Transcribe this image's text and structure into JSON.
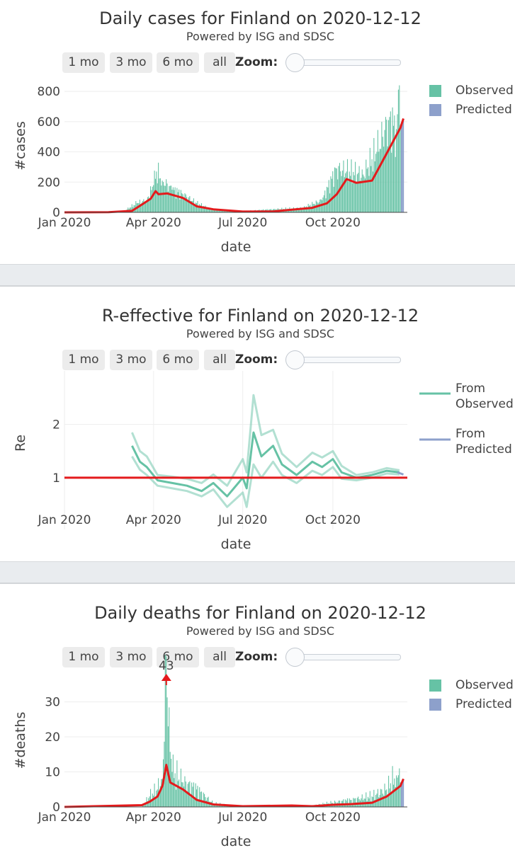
{
  "controls": {
    "buttons": [
      "1 mo",
      "3 mo",
      "6 mo",
      "all"
    ],
    "zoom_label": "Zoom:"
  },
  "colors": {
    "observed": "#66c2a5",
    "predicted": "#8da0cb",
    "trend": "#e41a1c"
  },
  "panels": [
    {
      "title": "Daily cases for Finland on 2020-12-12",
      "subtitle": "Powered by ISG and SDSC"
    },
    {
      "title": "R-effective for Finland on 2020-12-12",
      "subtitle": "Powered by ISG and SDSC"
    },
    {
      "title": "Daily deaths for Finland on 2020-12-12",
      "subtitle": "Powered by ISG and SDSC"
    }
  ],
  "chart_data": [
    {
      "type": "bar",
      "title": "Daily cases for Finland on 2020-12-12",
      "xlabel": "date",
      "ylabel": "#cases",
      "ylim": [
        0,
        880
      ],
      "y_ticks": [
        0,
        200,
        400,
        600,
        800
      ],
      "x_ticks": [
        "Jan 2020",
        "Apr 2020",
        "Jul 2020",
        "Oct 2020"
      ],
      "legend": {
        "position": "top-right",
        "entries": [
          "Observed",
          "Predicted"
        ]
      },
      "observed_daily_points": [
        [
          "2020-03-01",
          5
        ],
        [
          "2020-03-15",
          60
        ],
        [
          "2020-03-25",
          80
        ],
        [
          "2020-04-01",
          180
        ],
        [
          "2020-04-04",
          270
        ],
        [
          "2020-04-10",
          210
        ],
        [
          "2020-04-20",
          150
        ],
        [
          "2020-05-01",
          120
        ],
        [
          "2020-05-15",
          60
        ],
        [
          "2020-06-01",
          15
        ],
        [
          "2020-07-01",
          8
        ],
        [
          "2020-08-01",
          20
        ],
        [
          "2020-09-01",
          30
        ],
        [
          "2020-09-20",
          80
        ],
        [
          "2020-10-05",
          290
        ],
        [
          "2020-10-15",
          270
        ],
        [
          "2020-11-01",
          250
        ],
        [
          "2020-11-15",
          400
        ],
        [
          "2020-11-27",
          610
        ],
        [
          "2020-12-05",
          550
        ],
        [
          "2020-12-08",
          840
        ],
        [
          "2020-12-09",
          580
        ]
      ],
      "predicted": [
        [
          "2020-12-09",
          560
        ],
        [
          "2020-12-12",
          620
        ]
      ],
      "trend": [
        [
          "2020-01-01",
          0
        ],
        [
          "2020-02-15",
          1
        ],
        [
          "2020-03-10",
          10
        ],
        [
          "2020-03-22",
          60
        ],
        [
          "2020-03-29",
          90
        ],
        [
          "2020-04-03",
          140
        ],
        [
          "2020-04-06",
          120
        ],
        [
          "2020-04-15",
          125
        ],
        [
          "2020-05-01",
          95
        ],
        [
          "2020-05-15",
          40
        ],
        [
          "2020-06-01",
          20
        ],
        [
          "2020-07-01",
          5
        ],
        [
          "2020-08-01",
          6
        ],
        [
          "2020-08-20",
          18
        ],
        [
          "2020-09-10",
          30
        ],
        [
          "2020-09-25",
          60
        ],
        [
          "2020-10-05",
          120
        ],
        [
          "2020-10-15",
          220
        ],
        [
          "2020-10-25",
          195
        ],
        [
          "2020-11-10",
          210
        ],
        [
          "2020-11-20",
          330
        ],
        [
          "2020-12-09",
          560
        ],
        [
          "2020-12-12",
          620
        ]
      ]
    },
    {
      "type": "line",
      "title": "R-effective for Finland on 2020-12-12",
      "xlabel": "date",
      "ylabel": "Re",
      "ylim": [
        0.4,
        2.9
      ],
      "y_ticks": [
        1,
        2
      ],
      "x_ticks": [
        "Jan 2020",
        "Apr 2020",
        "Jul 2020",
        "Oct 2020"
      ],
      "legend": {
        "position": "top-right",
        "entries": [
          "From Observed",
          "From Predicted"
        ]
      },
      "reference_line": 1,
      "observed": [
        [
          "2020-03-10",
          1.6
        ],
        [
          "2020-03-18",
          1.3
        ],
        [
          "2020-03-25",
          1.2
        ],
        [
          "2020-04-05",
          0.95
        ],
        [
          "2020-04-20",
          0.9
        ],
        [
          "2020-05-05",
          0.85
        ],
        [
          "2020-05-20",
          0.75
        ],
        [
          "2020-06-01",
          0.9
        ],
        [
          "2020-06-15",
          0.65
        ],
        [
          "2020-07-01",
          1.0
        ],
        [
          "2020-07-05",
          0.8
        ],
        [
          "2020-07-12",
          1.85
        ],
        [
          "2020-07-20",
          1.4
        ],
        [
          "2020-08-01",
          1.6
        ],
        [
          "2020-08-10",
          1.25
        ],
        [
          "2020-08-25",
          1.05
        ],
        [
          "2020-09-10",
          1.3
        ],
        [
          "2020-09-20",
          1.2
        ],
        [
          "2020-10-01",
          1.35
        ],
        [
          "2020-10-10",
          1.1
        ],
        [
          "2020-10-25",
          1.0
        ],
        [
          "2020-11-10",
          1.05
        ],
        [
          "2020-11-25",
          1.13
        ],
        [
          "2020-12-08",
          1.1
        ]
      ],
      "observed_upper": [
        [
          "2020-03-10",
          1.85
        ],
        [
          "2020-03-18",
          1.5
        ],
        [
          "2020-03-25",
          1.4
        ],
        [
          "2020-04-05",
          1.05
        ],
        [
          "2020-04-20",
          1.02
        ],
        [
          "2020-05-05",
          0.98
        ],
        [
          "2020-05-20",
          0.9
        ],
        [
          "2020-06-01",
          1.06
        ],
        [
          "2020-06-15",
          0.85
        ],
        [
          "2020-07-01",
          1.35
        ],
        [
          "2020-07-05",
          1.1
        ],
        [
          "2020-07-12",
          2.55
        ],
        [
          "2020-07-20",
          1.8
        ],
        [
          "2020-08-01",
          1.9
        ],
        [
          "2020-08-10",
          1.45
        ],
        [
          "2020-08-25",
          1.2
        ],
        [
          "2020-09-10",
          1.47
        ],
        [
          "2020-09-20",
          1.38
        ],
        [
          "2020-10-01",
          1.5
        ],
        [
          "2020-10-10",
          1.22
        ],
        [
          "2020-10-25",
          1.05
        ],
        [
          "2020-11-10",
          1.1
        ],
        [
          "2020-11-25",
          1.18
        ],
        [
          "2020-12-08",
          1.14
        ]
      ],
      "observed_lower": [
        [
          "2020-03-10",
          1.4
        ],
        [
          "2020-03-18",
          1.15
        ],
        [
          "2020-03-25",
          1.05
        ],
        [
          "2020-04-05",
          0.85
        ],
        [
          "2020-04-20",
          0.8
        ],
        [
          "2020-05-05",
          0.75
        ],
        [
          "2020-05-20",
          0.65
        ],
        [
          "2020-06-01",
          0.78
        ],
        [
          "2020-06-15",
          0.45
        ],
        [
          "2020-07-01",
          0.72
        ],
        [
          "2020-07-05",
          0.45
        ],
        [
          "2020-07-12",
          1.25
        ],
        [
          "2020-07-20",
          1.0
        ],
        [
          "2020-08-01",
          1.3
        ],
        [
          "2020-08-10",
          1.05
        ],
        [
          "2020-08-25",
          0.9
        ],
        [
          "2020-09-10",
          1.13
        ],
        [
          "2020-09-20",
          1.05
        ],
        [
          "2020-10-01",
          1.2
        ],
        [
          "2020-10-10",
          0.98
        ],
        [
          "2020-10-25",
          0.95
        ],
        [
          "2020-11-10",
          1.0
        ],
        [
          "2020-11-25",
          1.08
        ],
        [
          "2020-12-08",
          1.06
        ]
      ],
      "predicted": [
        [
          "2020-12-06",
          1.1
        ],
        [
          "2020-12-12",
          1.06
        ]
      ]
    },
    {
      "type": "bar",
      "title": "Daily deaths for Finland on 2020-12-12",
      "xlabel": "date",
      "ylabel": "#deaths",
      "ylim": [
        0,
        38
      ],
      "y_ticks": [
        0,
        10,
        20,
        30
      ],
      "x_ticks": [
        "Jan 2020",
        "Apr 2020",
        "Jul 2020",
        "Oct 2020"
      ],
      "legend": {
        "position": "top-right",
        "entries": [
          "Observed",
          "Predicted"
        ]
      },
      "annotation": {
        "date": "2020-04-14",
        "text": "43"
      },
      "observed_daily_points": [
        [
          "2020-03-20",
          0
        ],
        [
          "2020-03-28",
          3
        ],
        [
          "2020-04-05",
          5
        ],
        [
          "2020-04-10",
          8
        ],
        [
          "2020-04-14",
          43
        ],
        [
          "2020-04-16",
          23
        ],
        [
          "2020-04-20",
          10
        ],
        [
          "2020-05-01",
          7
        ],
        [
          "2020-05-15",
          5
        ],
        [
          "2020-06-01",
          1
        ],
        [
          "2020-07-01",
          0
        ],
        [
          "2020-09-01",
          0
        ],
        [
          "2020-10-20",
          2
        ],
        [
          "2020-11-10",
          3
        ],
        [
          "2020-11-25",
          5
        ],
        [
          "2020-12-05",
          9
        ],
        [
          "2020-12-08",
          11
        ],
        [
          "2020-12-09",
          7
        ]
      ],
      "predicted": [
        [
          "2020-12-09",
          6
        ],
        [
          "2020-12-12",
          8
        ]
      ],
      "trend": [
        [
          "2020-01-01",
          0
        ],
        [
          "2020-03-20",
          0.5
        ],
        [
          "2020-03-28",
          1.5
        ],
        [
          "2020-04-05",
          3
        ],
        [
          "2020-04-10",
          6
        ],
        [
          "2020-04-14",
          12
        ],
        [
          "2020-04-18",
          7
        ],
        [
          "2020-05-01",
          5
        ],
        [
          "2020-05-15",
          2
        ],
        [
          "2020-06-01",
          0.7
        ],
        [
          "2020-07-01",
          0.2
        ],
        [
          "2020-08-20",
          0.4
        ],
        [
          "2020-09-10",
          0.2
        ],
        [
          "2020-10-01",
          0.6
        ],
        [
          "2020-10-20",
          0.8
        ],
        [
          "2020-11-10",
          1.2
        ],
        [
          "2020-11-25",
          3
        ],
        [
          "2020-12-09",
          6
        ],
        [
          "2020-12-12",
          8
        ]
      ]
    }
  ]
}
